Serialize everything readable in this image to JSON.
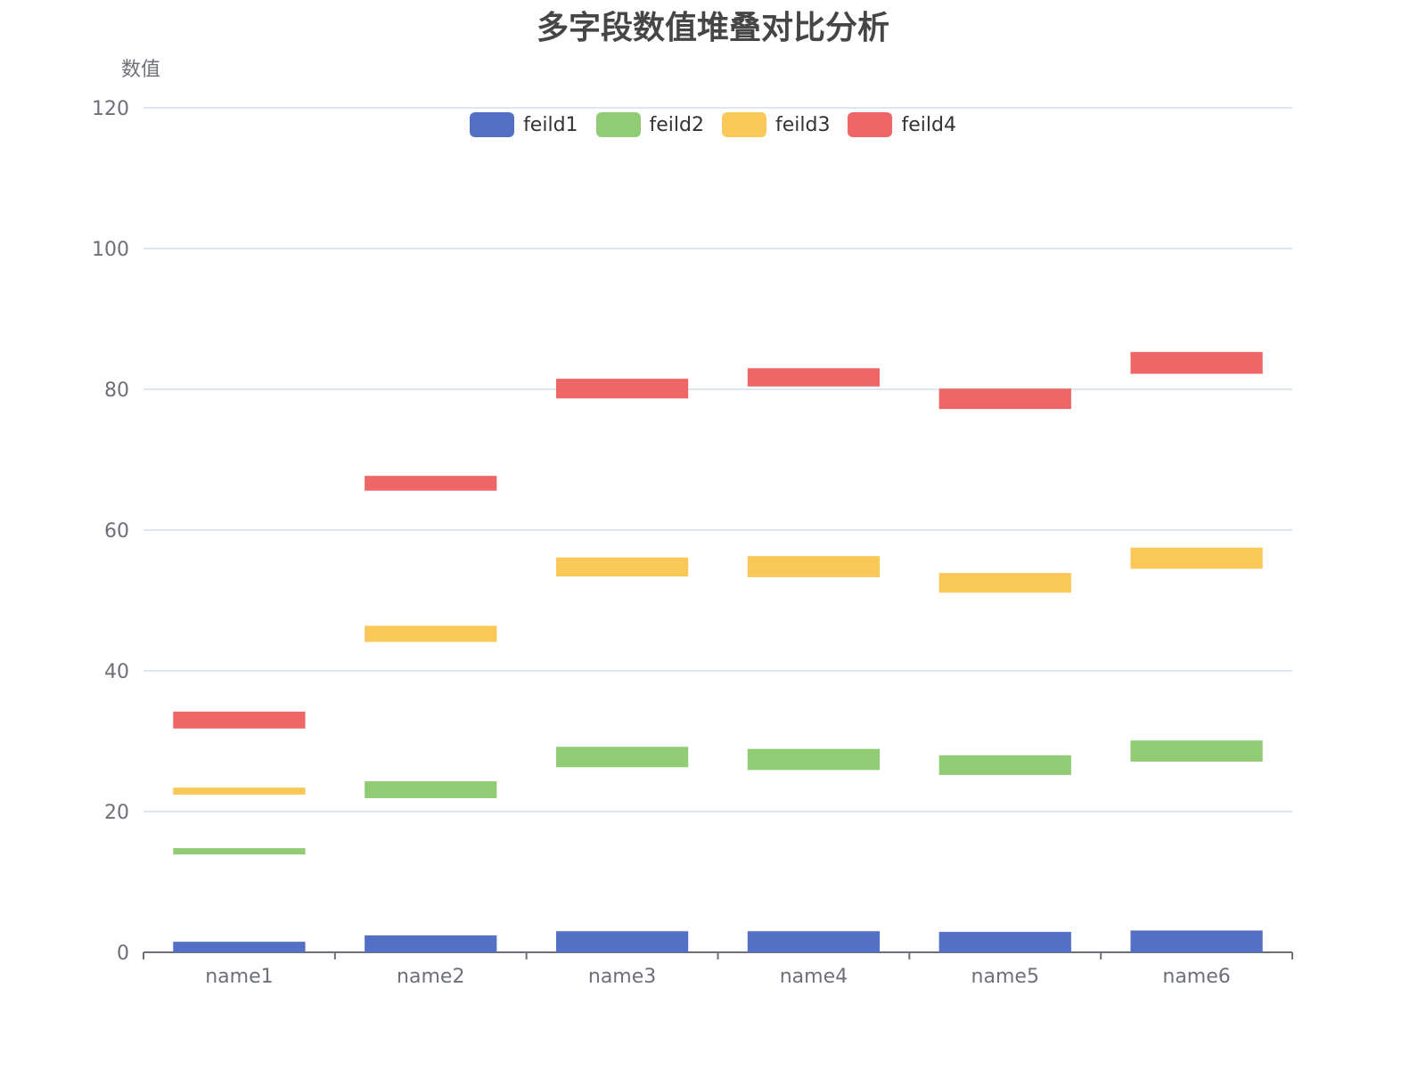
{
  "chart_data": {
    "type": "bar",
    "title": "多字段数值堆叠对比分析",
    "ylabel": "数值",
    "xlabel": "",
    "ylim": [
      0,
      120
    ],
    "yticks": [
      0,
      20,
      40,
      60,
      80,
      100,
      120
    ],
    "grid": true,
    "legend_position": "top-center",
    "categories": [
      "name1",
      "name2",
      "name3",
      "name4",
      "name5",
      "name6"
    ],
    "series": [
      {
        "name": "feild1",
        "color": "#5470c6",
        "ranges": [
          [
            0,
            1.5
          ],
          [
            0,
            2.4
          ],
          [
            0,
            3.0
          ],
          [
            0,
            3.0
          ],
          [
            0,
            2.9
          ],
          [
            0,
            3.1
          ]
        ]
      },
      {
        "name": "feild2",
        "color": "#91cc75",
        "ranges": [
          [
            13.9,
            14.8
          ],
          [
            21.9,
            24.3
          ],
          [
            26.3,
            29.2
          ],
          [
            25.9,
            28.9
          ],
          [
            25.2,
            28.0
          ],
          [
            27.1,
            30.1
          ]
        ]
      },
      {
        "name": "feild3",
        "color": "#fac858",
        "ranges": [
          [
            22.4,
            23.4
          ],
          [
            44.1,
            46.4
          ],
          [
            53.4,
            56.1
          ],
          [
            53.3,
            56.3
          ],
          [
            51.1,
            53.9
          ],
          [
            54.5,
            57.5
          ]
        ]
      },
      {
        "name": "feild4",
        "color": "#ee6666",
        "ranges": [
          [
            31.8,
            34.2
          ],
          [
            65.6,
            67.7
          ],
          [
            78.7,
            81.5
          ],
          [
            80.4,
            83.0
          ],
          [
            77.2,
            80.1
          ],
          [
            82.2,
            85.3
          ]
        ]
      }
    ]
  }
}
